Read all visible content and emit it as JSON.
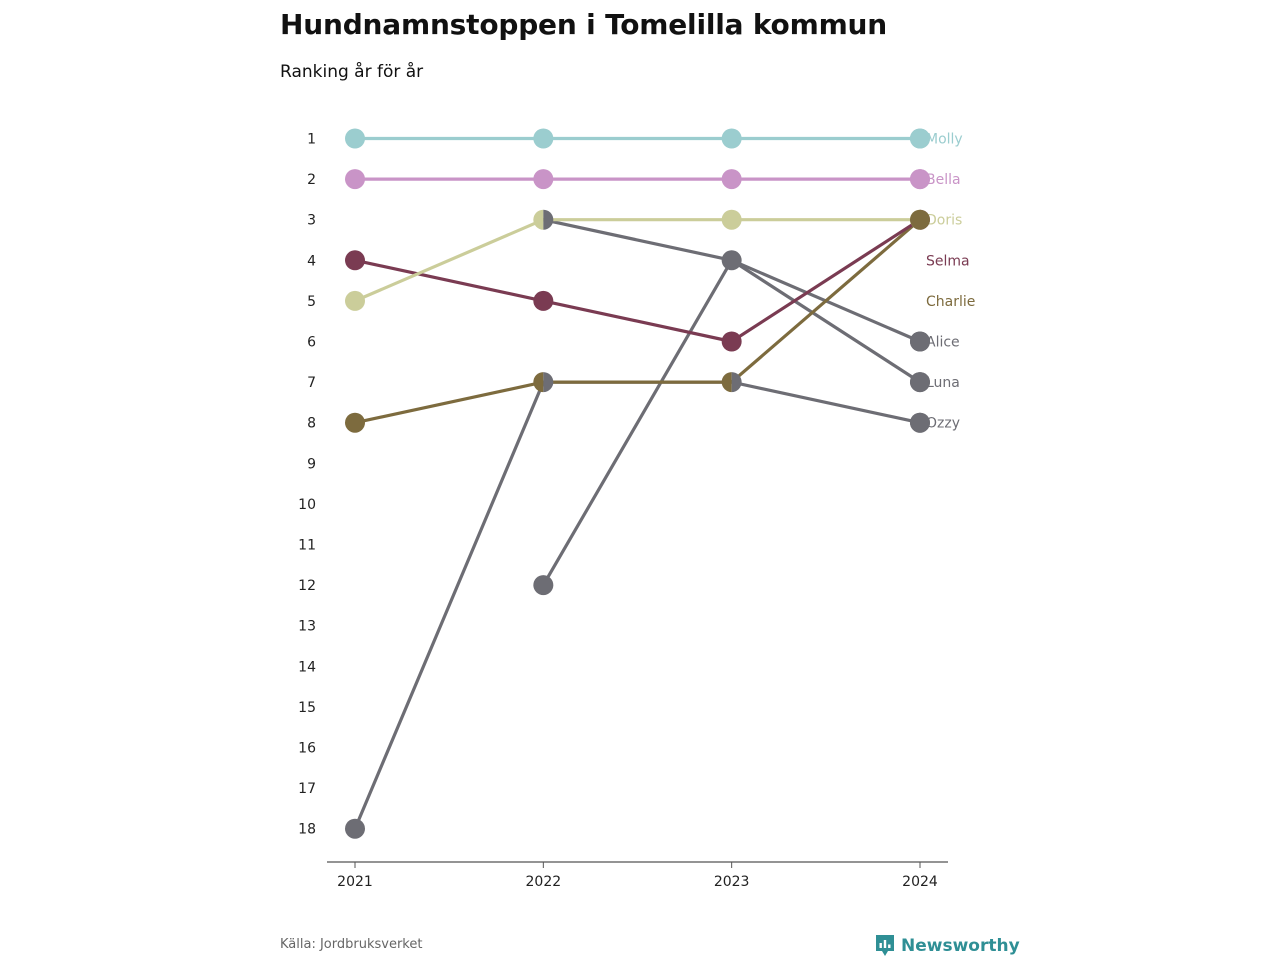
{
  "title": "Hundnamnstoppen i Tomelilla kommun",
  "subtitle": "Ranking år för år",
  "source": "Källa: Jordbruksverket",
  "brand": "Newsworthy",
  "chart_data": {
    "type": "line",
    "subtype": "bump",
    "categories": [
      "2021",
      "2022",
      "2023",
      "2024"
    ],
    "y_ticks": [
      1,
      2,
      3,
      4,
      5,
      6,
      7,
      8,
      9,
      10,
      11,
      12,
      13,
      14,
      15,
      16,
      17,
      18
    ],
    "ylim": [
      1,
      18
    ],
    "y_reversed": true,
    "grid": false,
    "series": [
      {
        "name": "Molly",
        "color": "#9bcdcf",
        "values": [
          1,
          1,
          1,
          1
        ]
      },
      {
        "name": "Bella",
        "color": "#c994c7",
        "values": [
          2,
          2,
          2,
          2
        ]
      },
      {
        "name": "Doris",
        "color": "#cbcd9a",
        "values": [
          5,
          3,
          3,
          3
        ]
      },
      {
        "name": "Selma",
        "color": "#7a3b52",
        "values": [
          4,
          5,
          6,
          3
        ]
      },
      {
        "name": "Charlie",
        "color": "#7d6b3e",
        "values": [
          8,
          7,
          7,
          3
        ]
      },
      {
        "name": "Alice",
        "color": "#6d6d74",
        "values": [
          null,
          3,
          4,
          6
        ]
      },
      {
        "name": "Luna",
        "color": "#6d6d74",
        "values": [
          null,
          12,
          4,
          7
        ]
      },
      {
        "name": "Ozzy",
        "color": "#6d6d74",
        "values": [
          18,
          7,
          7,
          8
        ]
      }
    ]
  }
}
